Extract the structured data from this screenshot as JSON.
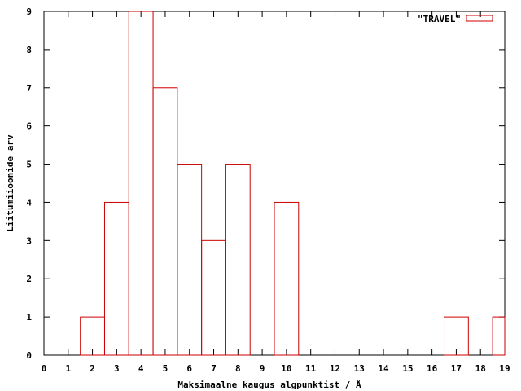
{
  "chart_data": {
    "type": "bar",
    "style": "histogram-steps",
    "x": [
      0,
      1,
      2,
      3,
      4,
      5,
      6,
      7,
      8,
      9,
      10,
      11,
      12,
      13,
      14,
      15,
      16,
      17,
      18,
      19
    ],
    "series": [
      {
        "name": "\"TRAVEL\"",
        "values": [
          0,
          0,
          1,
          4,
          9,
          7,
          5,
          3,
          5,
          0,
          4,
          0,
          0,
          0,
          0,
          0,
          0,
          1,
          0,
          1
        ],
        "color": "#cc0000"
      }
    ],
    "xlabel": "Maksimaalne kaugus algpunktist / Å",
    "ylabel": "Liitumiioonide arv",
    "xlim": [
      0,
      19
    ],
    "ylim": [
      0,
      9
    ],
    "xticks": [
      "0",
      "1",
      "2",
      "3",
      "4",
      "5",
      "6",
      "7",
      "8",
      "9",
      "10",
      "11",
      "12",
      "13",
      "14",
      "15",
      "16",
      "17",
      "18",
      "19"
    ],
    "yticks": [
      "0",
      "1",
      "2",
      "3",
      "4",
      "5",
      "6",
      "7",
      "8",
      "9"
    ],
    "grid": false,
    "legend_position": "top-right"
  }
}
